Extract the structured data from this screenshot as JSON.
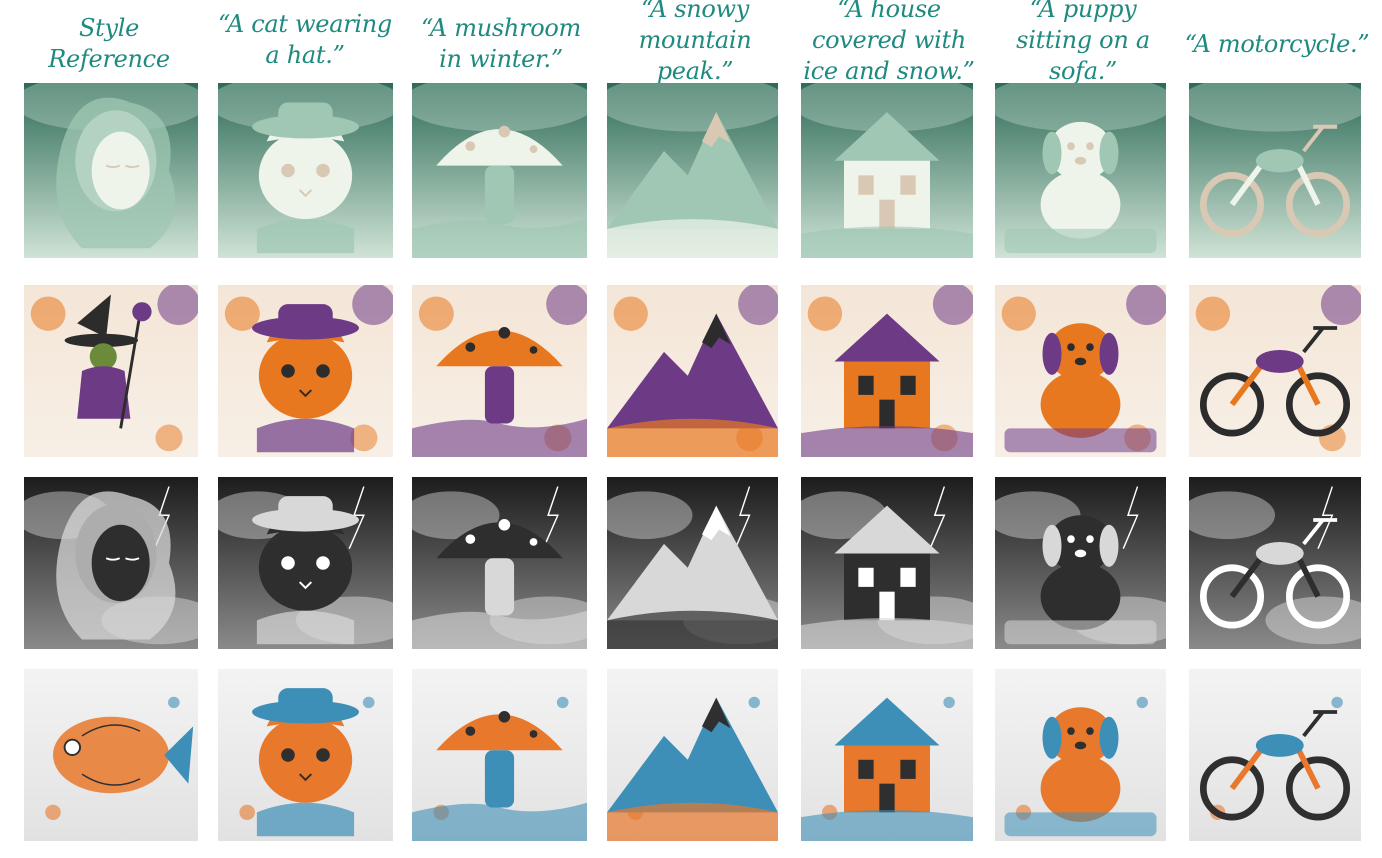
{
  "header": {
    "columns": [
      {
        "label": "Style Reference"
      },
      {
        "label": "“A cat wearing a hat.”"
      },
      {
        "label": "“A mushroom in winter.”"
      },
      {
        "label": "“A snowy mountain peak.”"
      },
      {
        "label": "“A house covered with ice and snow.”"
      },
      {
        "label": "“A puppy sitting on a sofa.”"
      },
      {
        "label": "“A motorcycle.”"
      }
    ]
  },
  "rows": [
    {
      "style": "jade",
      "cells": [
        {
          "subject": "woman-face"
        },
        {
          "subject": "cat-hat"
        },
        {
          "subject": "mushroom"
        },
        {
          "subject": "mountain"
        },
        {
          "subject": "house"
        },
        {
          "subject": "puppy"
        },
        {
          "subject": "motorcycle"
        }
      ]
    },
    {
      "style": "watercolor-halloween",
      "cells": [
        {
          "subject": "witch"
        },
        {
          "subject": "cat-hat"
        },
        {
          "subject": "mushroom"
        },
        {
          "subject": "mountain"
        },
        {
          "subject": "house"
        },
        {
          "subject": "puppy"
        },
        {
          "subject": "motorcycle"
        }
      ]
    },
    {
      "style": "storm-monochrome",
      "cells": [
        {
          "subject": "woman-profile"
        },
        {
          "subject": "cat-hat"
        },
        {
          "subject": "mushroom"
        },
        {
          "subject": "mountain"
        },
        {
          "subject": "house"
        },
        {
          "subject": "puppy"
        },
        {
          "subject": "motorcycle"
        }
      ]
    },
    {
      "style": "ink-watercolor",
      "cells": [
        {
          "subject": "fish"
        },
        {
          "subject": "cat-hat"
        },
        {
          "subject": "mushroom"
        },
        {
          "subject": "mountain"
        },
        {
          "subject": "house"
        },
        {
          "subject": "puppy"
        },
        {
          "subject": "motorcycle"
        }
      ]
    }
  ],
  "styles": {
    "jade": {
      "bg1": "#2e6b57",
      "bg2": "#cfe3d6",
      "fg": "#eef4ea",
      "shade": "#9fc7b3",
      "accent": "#d9c9b4"
    },
    "watercolor-halloween": {
      "bg1": "#f4e6d7",
      "bg2": "#f7efe6",
      "fg": "#e8781f",
      "shade": "#6d3a86",
      "accent": "#2c2c2c"
    },
    "storm-monochrome": {
      "bg1": "#1c1c1c",
      "bg2": "#8a8a8a",
      "fg": "#2e2e2e",
      "shade": "#d8d8d8",
      "accent": "#ffffff"
    },
    "ink-watercolor": {
      "bg1": "#f3f3f3",
      "bg2": "#e2e2e2",
      "fg": "#e8782c",
      "shade": "#3d8fb8",
      "accent": "#2f2f2f"
    }
  }
}
